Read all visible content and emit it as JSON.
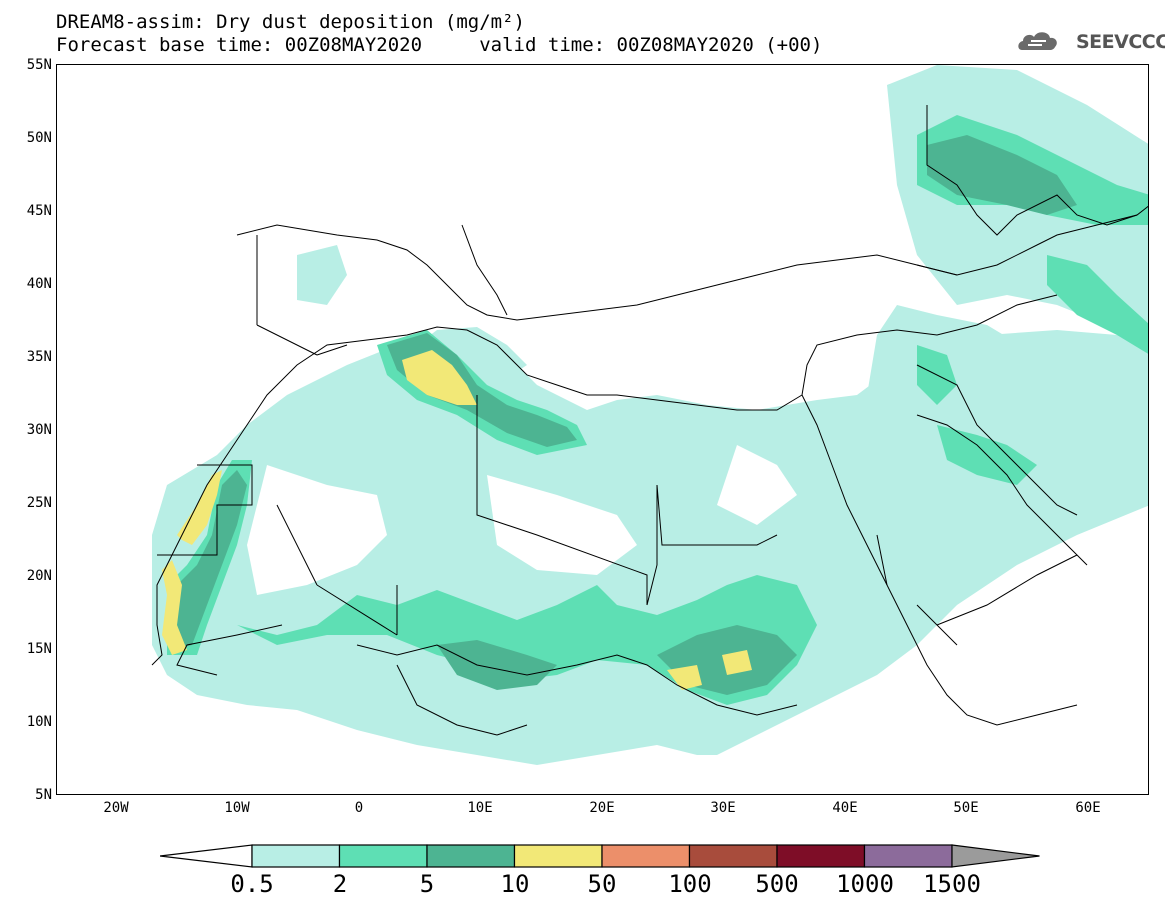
{
  "header": {
    "title_line1": "DREAM8-assim: Dry dust deposition (mg/m²)",
    "title_line2": "Forecast base time: 00Z08MAY2020     valid time: 00Z08MAY2020 (+00)",
    "logo_text": "SEEVCCC"
  },
  "map": {
    "lon_range": [
      -25,
      65
    ],
    "lat_range": [
      5,
      55
    ],
    "lat_labels": [
      "55N",
      "50N",
      "45N",
      "40N",
      "35N",
      "30N",
      "25N",
      "20N",
      "15N",
      "10N",
      "5N"
    ],
    "lon_labels": [
      "20W",
      "10W",
      "0",
      "10E",
      "20E",
      "30E",
      "40E",
      "50E",
      "60E"
    ]
  },
  "legend": {
    "levels": [
      "0.5",
      "2",
      "5",
      "10",
      "50",
      "100",
      "500",
      "1000",
      "1500"
    ],
    "colors": [
      "#ffffff",
      "#b8eee5",
      "#5edfb4",
      "#4db492",
      "#f2e877",
      "#ec8f6a",
      "#a84c3c",
      "#7e0d27",
      "#8c6b9b",
      "#9b9b9b"
    ]
  }
}
